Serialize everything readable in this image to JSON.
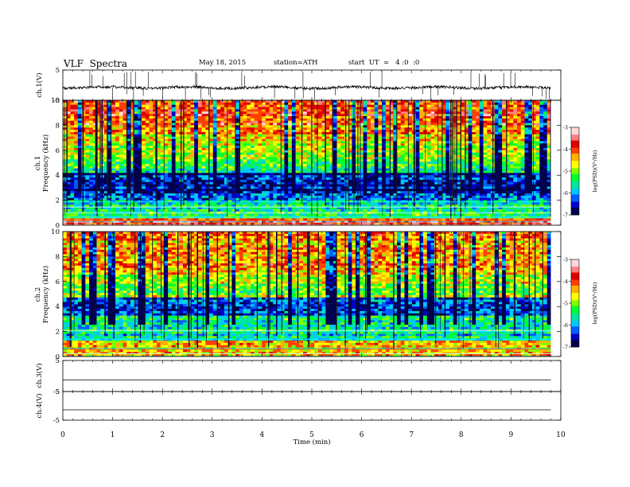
{
  "header": {
    "title": "VLF  Spectra",
    "date": "May 18, 2015",
    "station": "station=ATH",
    "start": "start  UT  =   4 :0  :0"
  },
  "colors": {
    "colormap": [
      "#00004d",
      "#0000cc",
      "#0060ff",
      "#00c8ff",
      "#00e6a0",
      "#00ff30",
      "#7dff00",
      "#ffff00",
      "#ffb000",
      "#ff4000",
      "#e00000",
      "#ff8080",
      "#ffd8d8"
    ],
    "trace": "#000000"
  },
  "chart_data": [
    {
      "type": "line",
      "panel": "ch1",
      "ylabel": "ch.1(V)",
      "ylim": [
        -5,
        5
      ],
      "yticks": [
        "5",
        "-5"
      ],
      "xlim": [
        0,
        10
      ],
      "series": [
        {
          "values": "noisy waveform around -0.8 V with spikes up to about 5 V and down to about -5 V"
        }
      ]
    },
    {
      "type": "heatmap",
      "panel": "ch1-spectrogram",
      "ylabel": "Frequency (kHz)",
      "channel_label": "ch.1",
      "ylim": [
        0,
        10
      ],
      "yticks": [
        "0",
        "2",
        "4",
        "6",
        "8",
        "10"
      ],
      "xlim": [
        0,
        9.8
      ],
      "colorbar": {
        "label": "log(PSD)(V²/Hz)",
        "range": [
          -7,
          -3
        ],
        "ticks": [
          "-3",
          "-4",
          "-5",
          "-6",
          "-7"
        ]
      },
      "bands": [
        {
          "from": 0.0,
          "to": 0.5,
          "level": -4.0
        },
        {
          "from": 0.5,
          "to": 2.0,
          "level": -5.5
        },
        {
          "from": 2.0,
          "to": 2.6,
          "level": -6.3
        },
        {
          "from": 2.6,
          "to": 4.2,
          "level": -6.6
        },
        {
          "from": 4.2,
          "to": 5.2,
          "level": -5.4
        },
        {
          "from": 5.2,
          "to": 6.5,
          "level": -5.0
        },
        {
          "from": 6.5,
          "to": 8.0,
          "level": -4.5
        },
        {
          "from": 8.0,
          "to": 10.0,
          "level": -4.0
        }
      ]
    },
    {
      "type": "heatmap",
      "panel": "ch2-spectrogram",
      "ylabel": "Frequency (kHz)",
      "channel_label": "ch.2",
      "ylim": [
        0,
        10
      ],
      "yticks": [
        "0",
        "2",
        "4",
        "6",
        "8",
        "10"
      ],
      "xlim": [
        0,
        9.8
      ],
      "colorbar": {
        "label": "log(PSD)(V²/Hz)",
        "range": [
          -7,
          -3
        ],
        "ticks": [
          "-3",
          "-4",
          "-5",
          "-6",
          "-7"
        ]
      },
      "bands": [
        {
          "from": 0.0,
          "to": 1.2,
          "level": -4.6
        },
        {
          "from": 1.2,
          "to": 3.2,
          "level": -5.6
        },
        {
          "from": 3.2,
          "to": 4.8,
          "level": -6.3
        },
        {
          "from": 4.8,
          "to": 6.5,
          "level": -5.0
        },
        {
          "from": 6.5,
          "to": 10.0,
          "level": -4.3
        }
      ]
    },
    {
      "type": "line",
      "panel": "ch3",
      "ylabel": "ch.3(V)",
      "ylim": [
        -5,
        5
      ],
      "yticks": [
        "5",
        "-5"
      ],
      "xlim": [
        0,
        10
      ],
      "series": [
        {
          "values": "flat trace near 0 V"
        }
      ]
    },
    {
      "type": "line",
      "panel": "ch4",
      "ylabel": "ch.4(V)",
      "ylim": [
        -5,
        5
      ],
      "yticks": [
        "5",
        "-5"
      ],
      "xlim": [
        0,
        10
      ],
      "series": [
        {
          "values": "flat trace near 0 V"
        }
      ]
    }
  ],
  "xaxis": {
    "label": "Time  (min)",
    "range": [
      0,
      10
    ],
    "ticks": [
      "0",
      "1",
      "2",
      "3",
      "4",
      "5",
      "6",
      "7",
      "8",
      "9",
      "10"
    ]
  }
}
